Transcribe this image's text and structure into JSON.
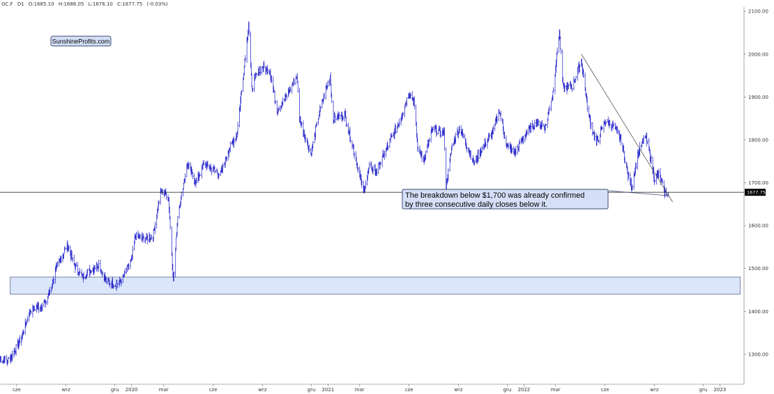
{
  "header": {
    "symbol": "GC.F",
    "timeframe": "D1",
    "open": "O:1685.10",
    "high": "H:1688.05",
    "low": "L:1676.10",
    "close": "C:1677.75",
    "change": "(-0.03%)"
  },
  "logo": "SunshineProfits.com",
  "annotation": {
    "line1": "The breakdown below $1,700 was already confirmed",
    "line2": "by three consecutive daily closes below it."
  },
  "current_price_label": "1677.75",
  "colors": {
    "candles": "#1a1ac8",
    "support_zone_fill": "#dce6fb",
    "support_zone_border": "#5a6a90",
    "annotation_fill": "#d5dff7",
    "horizontal_line": "#333333",
    "price_tag": "#000000"
  },
  "chart_data": {
    "type": "line",
    "title": "",
    "xlabel": "",
    "ylabel": "",
    "ylim": [
      1230,
      2110
    ],
    "grid": false,
    "y_ticks": [
      "2100.00",
      "2000.00",
      "1900.00",
      "1800.00",
      "1700.00",
      "1600.00",
      "1500.00",
      "1400.00",
      "1300.00"
    ],
    "y_tick_values": [
      2100,
      2000,
      1900,
      1800,
      1700,
      1600,
      1500,
      1400,
      1300
    ],
    "x_tick_labels": [
      "cze",
      "wrz",
      "gru",
      "2020",
      "mar",
      "cze",
      "wrz",
      "gru",
      "2021",
      "mar",
      "cze",
      "wrz",
      "gru",
      "2022",
      "mar",
      "cze",
      "wrz",
      "gru",
      "2023"
    ],
    "x_tick_dates": [
      "2019-06-01",
      "2019-09-01",
      "2019-12-01",
      "2020-01-01",
      "2020-03-01",
      "2020-06-01",
      "2020-09-01",
      "2020-12-01",
      "2021-01-01",
      "2021-03-01",
      "2021-06-01",
      "2021-09-01",
      "2021-12-01",
      "2022-01-01",
      "2022-03-01",
      "2022-06-01",
      "2022-09-01",
      "2022-12-01",
      "2023-01-01"
    ],
    "xlim": [
      "2019-05-01",
      "2023-02-15"
    ],
    "series": [
      {
        "values": [
          [
            "2019-05-01",
            1290
          ],
          [
            "2019-05-15",
            1285
          ],
          [
            "2019-05-25",
            1300
          ],
          [
            "2019-06-10",
            1340
          ],
          [
            "2019-06-25",
            1400
          ],
          [
            "2019-07-10",
            1410
          ],
          [
            "2019-07-25",
            1420
          ],
          [
            "2019-08-05",
            1460
          ],
          [
            "2019-08-15",
            1505
          ],
          [
            "2019-08-25",
            1530
          ],
          [
            "2019-09-04",
            1555
          ],
          [
            "2019-09-15",
            1510
          ],
          [
            "2019-10-01",
            1480
          ],
          [
            "2019-10-15",
            1495
          ],
          [
            "2019-11-01",
            1510
          ],
          [
            "2019-11-15",
            1470
          ],
          [
            "2019-12-01",
            1462
          ],
          [
            "2019-12-15",
            1475
          ],
          [
            "2020-01-01",
            1520
          ],
          [
            "2020-01-08",
            1575
          ],
          [
            "2020-01-25",
            1570
          ],
          [
            "2020-02-10",
            1575
          ],
          [
            "2020-02-24",
            1680
          ],
          [
            "2020-03-05",
            1675
          ],
          [
            "2020-03-10",
            1660
          ],
          [
            "2020-03-19",
            1470
          ],
          [
            "2020-03-27",
            1625
          ],
          [
            "2020-04-14",
            1745
          ],
          [
            "2020-04-30",
            1700
          ],
          [
            "2020-05-15",
            1745
          ],
          [
            "2020-06-01",
            1730
          ],
          [
            "2020-06-15",
            1720
          ],
          [
            "2020-07-01",
            1780
          ],
          [
            "2020-07-15",
            1810
          ],
          [
            "2020-07-28",
            1960
          ],
          [
            "2020-08-06",
            2070
          ],
          [
            "2020-08-12",
            1920
          ],
          [
            "2020-08-20",
            1950
          ],
          [
            "2020-09-01",
            1970
          ],
          [
            "2020-09-15",
            1960
          ],
          [
            "2020-09-28",
            1870
          ],
          [
            "2020-10-15",
            1900
          ],
          [
            "2020-11-04",
            1950
          ],
          [
            "2020-11-09",
            1850
          ],
          [
            "2020-11-30",
            1765
          ],
          [
            "2020-12-15",
            1860
          ],
          [
            "2021-01-05",
            1950
          ],
          [
            "2021-01-10",
            1850
          ],
          [
            "2021-02-01",
            1860
          ],
          [
            "2021-02-15",
            1790
          ],
          [
            "2021-03-08",
            1680
          ],
          [
            "2021-03-20",
            1740
          ],
          [
            "2021-04-01",
            1725
          ],
          [
            "2021-04-20",
            1780
          ],
          [
            "2021-05-15",
            1845
          ],
          [
            "2021-06-01",
            1910
          ],
          [
            "2021-06-10",
            1890
          ],
          [
            "2021-06-17",
            1780
          ],
          [
            "2021-06-29",
            1755
          ],
          [
            "2021-07-15",
            1825
          ],
          [
            "2021-08-05",
            1815
          ],
          [
            "2021-08-09",
            1690
          ],
          [
            "2021-08-20",
            1785
          ],
          [
            "2021-09-03",
            1830
          ],
          [
            "2021-09-30",
            1745
          ],
          [
            "2021-10-15",
            1780
          ],
          [
            "2021-11-05",
            1820
          ],
          [
            "2021-11-16",
            1870
          ],
          [
            "2021-11-30",
            1785
          ],
          [
            "2021-12-15",
            1770
          ],
          [
            "2022-01-05",
            1815
          ],
          [
            "2022-01-25",
            1840
          ],
          [
            "2022-02-10",
            1830
          ],
          [
            "2022-02-24",
            1910
          ],
          [
            "2022-03-08",
            2055
          ],
          [
            "2022-03-15",
            1920
          ],
          [
            "2022-04-01",
            1925
          ],
          [
            "2022-04-18",
            1985
          ],
          [
            "2022-05-01",
            1860
          ],
          [
            "2022-05-16",
            1790
          ],
          [
            "2022-06-01",
            1845
          ],
          [
            "2022-06-15",
            1835
          ],
          [
            "2022-07-01",
            1800
          ],
          [
            "2022-07-15",
            1710
          ],
          [
            "2022-07-21",
            1690
          ],
          [
            "2022-08-01",
            1765
          ],
          [
            "2022-08-15",
            1810
          ],
          [
            "2022-08-25",
            1760
          ],
          [
            "2022-09-01",
            1710
          ],
          [
            "2022-09-10",
            1720
          ],
          [
            "2022-09-20",
            1675
          ],
          [
            "2022-09-27",
            1677.75
          ]
        ]
      }
    ],
    "horizontal_line": 1677.75,
    "support_zone": {
      "y_from": 1440,
      "y_to": 1480,
      "x_from": "2019-05-20",
      "x_to": "2023-02-08"
    },
    "trendline": [
      [
        "2022-04-18",
        2000
      ],
      [
        "2022-10-05",
        1655
      ]
    ],
    "annotation_pointer": [
      "2022-09-27",
      1670
    ]
  }
}
